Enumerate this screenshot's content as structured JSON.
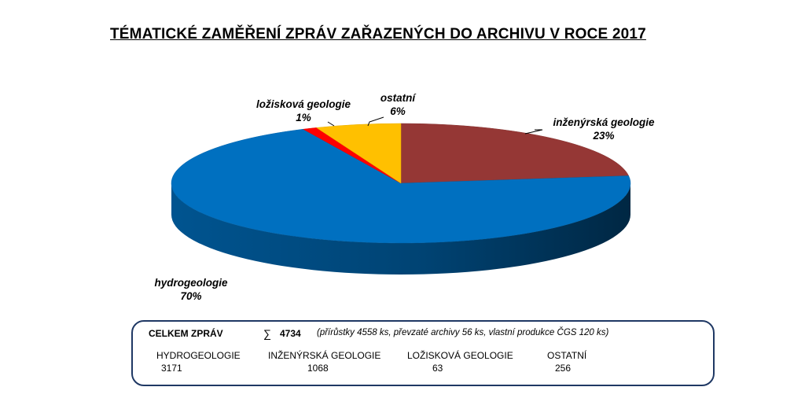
{
  "title": "TÉMATICKÉ ZAMĚŘENÍ ZPRÁV ZAŘAZENÝCH DO ARCHIVU V ROCE  2017",
  "chart_data": {
    "type": "pie",
    "slices": [
      {
        "label": "inženýrská geologie",
        "pct_label": "23%",
        "value": 23,
        "color": "#953735"
      },
      {
        "label": "hydrogeologie",
        "pct_label": "70%",
        "value": 70,
        "color": "#0070c0"
      },
      {
        "label": "ložisková geologie",
        "pct_label": "1%",
        "value": 1,
        "color": "#ff0000"
      },
      {
        "label": "ostatní",
        "pct_label": "6%",
        "value": 6,
        "color": "#ffc000"
      }
    ]
  },
  "summary": {
    "label": "CELKEM ZPRÁV",
    "sigma": "∑",
    "total": "4734",
    "note": "(přírůstky  4558 ks, převzaté archivy 56 ks, vlastní produkce ČGS 120 ks)",
    "categories": [
      {
        "name": "HYDROGEOLOGIE",
        "value": "3171"
      },
      {
        "name": "INŽENÝRSKÁ GEOLOGIE",
        "value": "1068"
      },
      {
        "name": "LOŽISKOVÁ GEOLOGIE",
        "value": "63"
      },
      {
        "name": "OSTATNÍ",
        "value": "256"
      }
    ]
  }
}
